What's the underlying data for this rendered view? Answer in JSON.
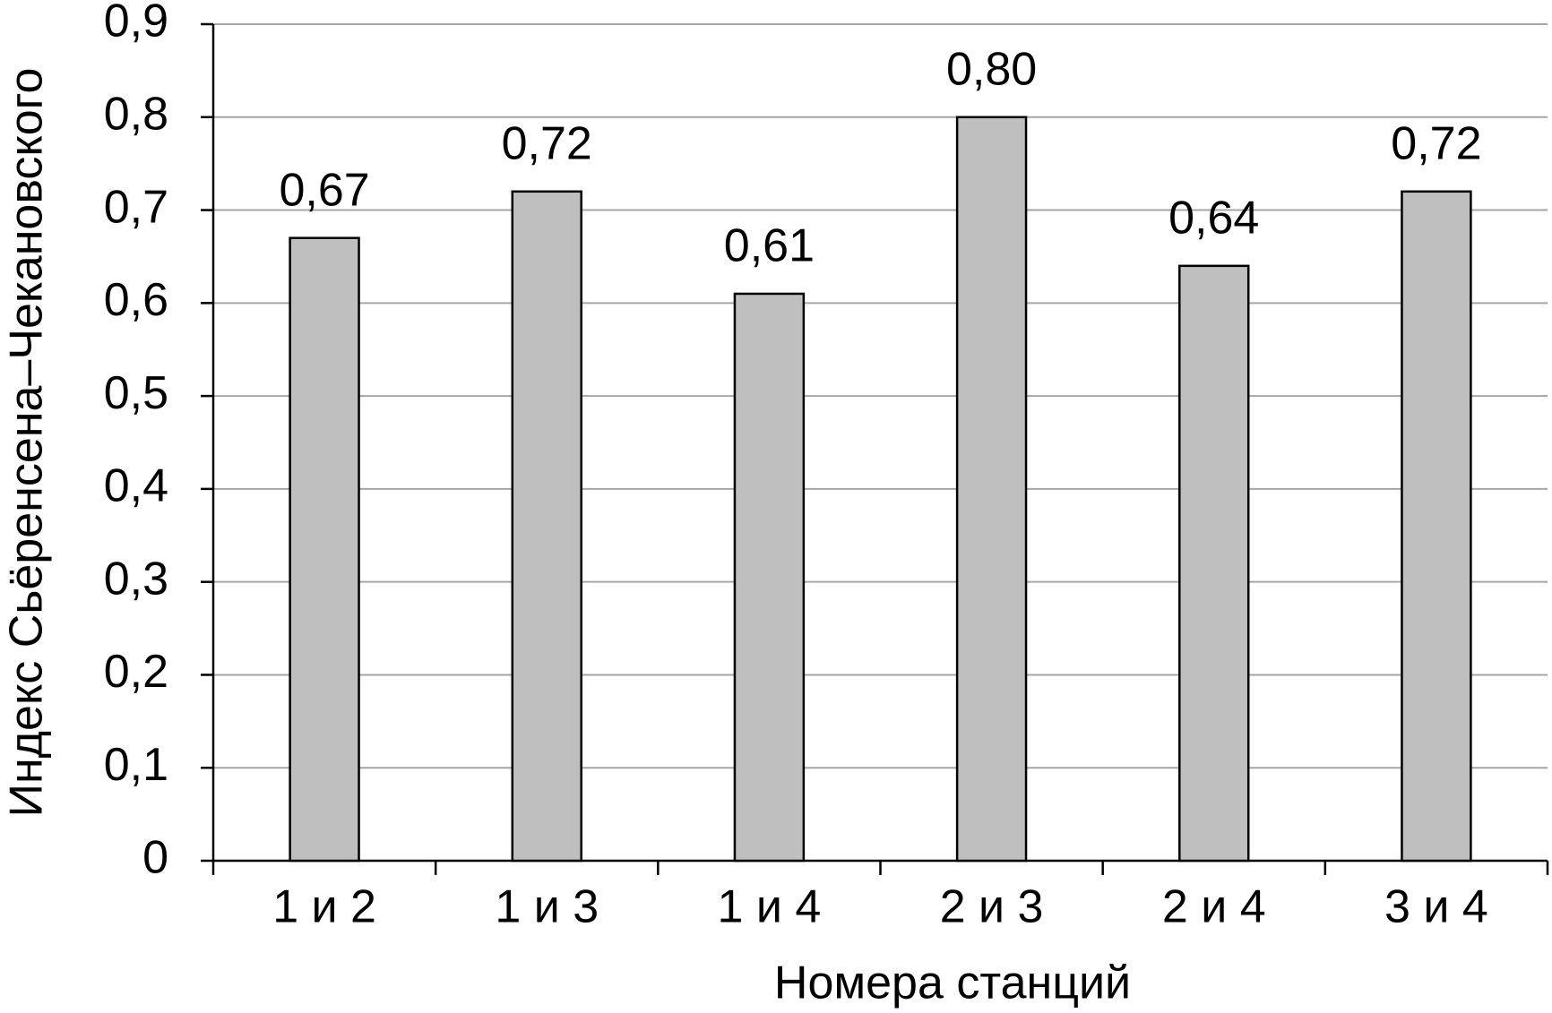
{
  "chart_data": {
    "type": "bar",
    "x_label": "Номера станций",
    "y_label": "Индекс Сьёренсена–Чекановского",
    "categories": [
      "1 и 2",
      "1 и 3",
      "1 и 4",
      "2 и 3",
      "2 и 4",
      "3 и 4"
    ],
    "values": [
      0.67,
      0.72,
      0.61,
      0.8,
      0.64,
      0.72
    ],
    "value_labels": [
      "0,67",
      "0,72",
      "0,61",
      "0,80",
      "0,64",
      "0,72"
    ],
    "color": "#bfbfbf",
    "ylim": [
      0,
      0.9
    ],
    "yticks": [
      0,
      {
        "value": 0.1,
        "label": "0,1"
      },
      {
        "value": 0.2,
        "label": "0,2"
      },
      {
        "value": 0.3,
        "label": "0,3"
      },
      {
        "value": 0.4,
        "label": "0,4"
      },
      {
        "value": 0.5,
        "label": "0,5"
      },
      {
        "value": 0.6,
        "label": "0,6"
      },
      {
        "value": 0.7,
        "label": "0,7"
      },
      {
        "value": 0.8,
        "label": "0,8"
      },
      {
        "value": 0.9,
        "label": "0,9"
      }
    ],
    "grid": true
  }
}
